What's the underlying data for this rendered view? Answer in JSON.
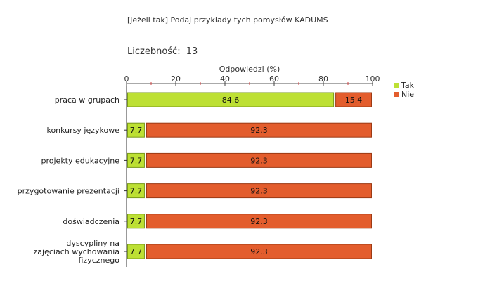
{
  "title": "[jeżeli tak] Podaj przykłady tych pomysłów KADUMS",
  "count": {
    "label": "Liczebność:",
    "value": "13"
  },
  "chart_data": {
    "type": "bar",
    "orientation": "horizontal",
    "stacked": true,
    "xlabel": "Odpowiedzi (%)",
    "xlim": [
      0,
      100
    ],
    "xticks": [
      0,
      20,
      40,
      60,
      80,
      100
    ],
    "legend_position": "top-right",
    "categories": [
      "praca w grupach",
      "konkursy językowe",
      "projekty edukacyjne",
      "przygotowanie prezentacji",
      "doświadczenia",
      "dyscypliny na zajęciach wychowania fizycznego"
    ],
    "series": [
      {
        "name": "Tak",
        "color": "#bde034",
        "values": [
          84.6,
          7.7,
          7.7,
          7.7,
          7.7,
          7.7
        ]
      },
      {
        "name": "Nie",
        "color": "#e35d2d",
        "values": [
          15.4,
          92.3,
          92.3,
          92.3,
          92.3,
          92.3
        ]
      }
    ]
  }
}
